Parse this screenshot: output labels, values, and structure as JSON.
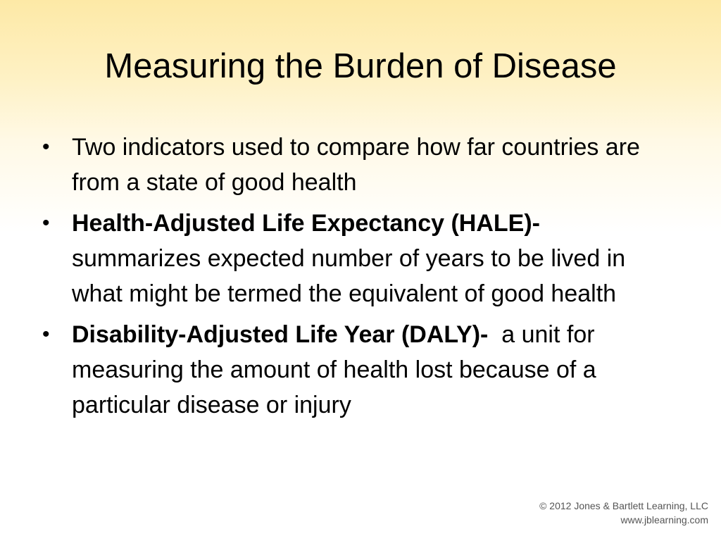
{
  "slide": {
    "title": "Measuring the Burden of Disease",
    "bullets": [
      {
        "bold": "",
        "text": "Two indicators used to compare how far countries are from a state of good health"
      },
      {
        "bold": "Health-Adjusted Life Expectancy (HALE)-",
        "text": " summarizes expected number of years to be lived in what might be termed the equivalent of good health"
      },
      {
        "bold": "Disability-Adjusted Life Year (DALY)-",
        "text": "  a unit for measuring the amount of health lost because of a particular disease or injury"
      }
    ],
    "bullet_glyph": "•"
  },
  "footer": {
    "copyright": "© 2012 Jones & Bartlett Learning, LLC",
    "website": "www.jblearning.com"
  }
}
